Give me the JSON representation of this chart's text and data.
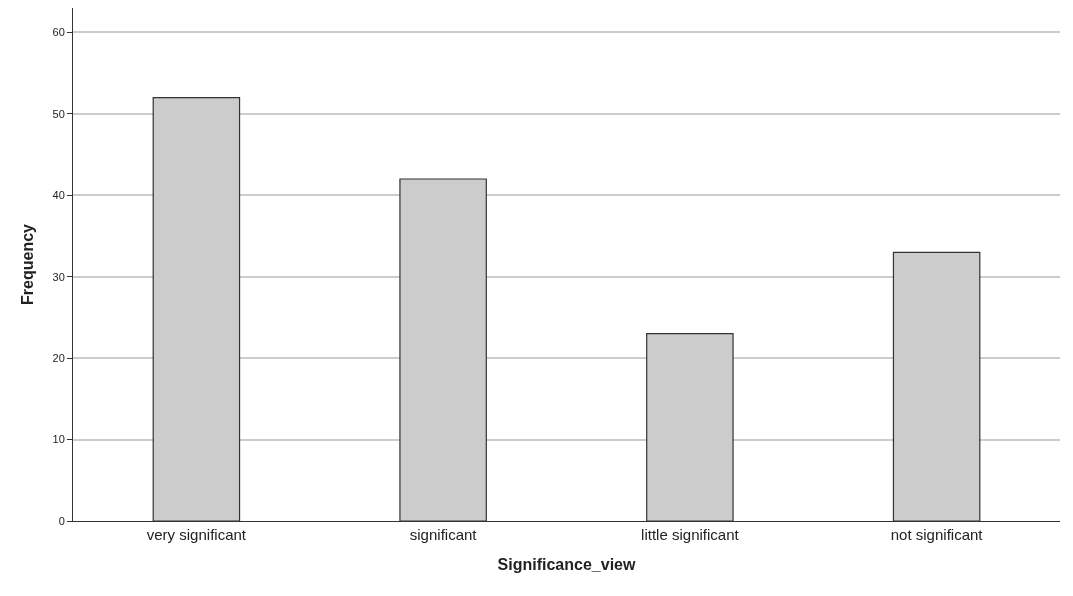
{
  "chart_data": {
    "type": "bar",
    "xlabel": "Significance_view",
    "ylabel": "Frequency",
    "categories": [
      "very significant",
      "significant",
      "little significant",
      "not significant"
    ],
    "values": [
      52,
      42,
      23,
      33
    ],
    "color": "#cccccc",
    "ylim": [
      0,
      63
    ],
    "yticks": [
      0,
      10,
      20,
      30,
      40,
      50,
      60
    ],
    "grid": "y"
  }
}
